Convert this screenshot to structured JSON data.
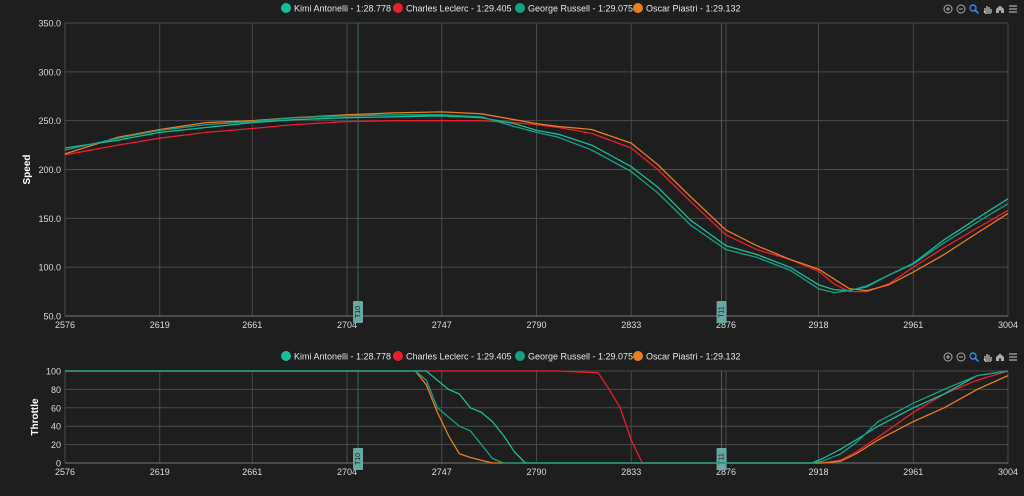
{
  "legend": [
    {
      "label": "Kimi Antonelli - 1:28.778",
      "color": "#1abc9c"
    },
    {
      "label": "Charles Leclerc - 1:29.405",
      "color": "#e8202e"
    },
    {
      "label": "George Russell - 1:29.075",
      "color": "#16a085"
    },
    {
      "label": "Oscar Piastri - 1:29.132",
      "color": "#e67e22"
    }
  ],
  "toolbar_icons": [
    "zoom-in-icon",
    "zoom-out-icon",
    "magnifier-icon",
    "pan-hand-icon",
    "home-icon",
    "menu-icon"
  ],
  "chart_data": [
    {
      "type": "line",
      "title": "",
      "ylabel": "Speed",
      "xlim": [
        2576,
        3004
      ],
      "ylim": [
        50,
        350
      ],
      "yticks": [
        "50.0",
        "100.0",
        "150.0",
        "200.0",
        "250.0",
        "300.0",
        "350.0"
      ],
      "xticks": [
        "2576",
        "2619",
        "2661",
        "2704",
        "2747",
        "2790",
        "2833",
        "2876",
        "2918",
        "2961",
        "3004"
      ],
      "annotations": [
        {
          "x": 2709,
          "label": "T10"
        },
        {
          "x": 2874,
          "label": "T11"
        }
      ],
      "grid": true,
      "legend_position": "top",
      "x": [
        2576,
        2600,
        2619,
        2640,
        2661,
        2680,
        2704,
        2725,
        2747,
        2765,
        2780,
        2790,
        2800,
        2815,
        2833,
        2845,
        2860,
        2876,
        2890,
        2905,
        2918,
        2925,
        2932,
        2940,
        2950,
        2961,
        2975,
        2990,
        3004
      ],
      "series": [
        {
          "name": "Kimi Antonelli - 1:28.778",
          "values": [
            222,
            230,
            238,
            243,
            248,
            251,
            253,
            254,
            255,
            253,
            247,
            240,
            236,
            225,
            203,
            182,
            148,
            122,
            113,
            100,
            82,
            77,
            76,
            80,
            92,
            104,
            128,
            150,
            170
          ]
        },
        {
          "name": "Charles Leclerc - 1:29.405",
          "values": [
            215,
            225,
            232,
            238,
            242,
            246,
            249,
            250,
            250,
            250,
            248,
            246,
            243,
            237,
            222,
            200,
            167,
            133,
            118,
            108,
            96,
            83,
            75,
            75,
            83,
            100,
            120,
            140,
            158
          ]
        },
        {
          "name": "George Russell - 1:29.075",
          "values": [
            220,
            232,
            240,
            246,
            249,
            253,
            255,
            256,
            256,
            254,
            244,
            238,
            233,
            220,
            198,
            176,
            143,
            118,
            110,
            97,
            78,
            74,
            76,
            81,
            92,
            103,
            125,
            146,
            165
          ]
        },
        {
          "name": "Oscar Piastri - 1:29.132",
          "values": [
            216,
            233,
            241,
            248,
            250,
            253,
            256,
            258,
            259,
            257,
            251,
            247,
            244,
            241,
            227,
            205,
            172,
            138,
            122,
            108,
            98,
            88,
            78,
            76,
            82,
            95,
            113,
            135,
            155
          ]
        }
      ]
    },
    {
      "type": "line",
      "title": "",
      "ylabel": "Throttle",
      "xlim": [
        2576,
        3004
      ],
      "ylim": [
        0,
        100
      ],
      "yticks": [
        "0",
        "20",
        "40",
        "60",
        "80",
        "100"
      ],
      "xticks": [
        "2576",
        "2619",
        "2661",
        "2704",
        "2747",
        "2790",
        "2833",
        "2876",
        "2918",
        "2961",
        "3004"
      ],
      "annotations": [
        {
          "x": 2709,
          "label": "T10"
        },
        {
          "x": 2874,
          "label": "T11"
        }
      ],
      "grid": true,
      "legend_position": "top",
      "x": [
        2576,
        2735,
        2740,
        2745,
        2750,
        2755,
        2760,
        2765,
        2770,
        2775,
        2780,
        2785,
        2800,
        2818,
        2823,
        2828,
        2833,
        2838,
        2900,
        2915,
        2920,
        2928,
        2935,
        2945,
        2961,
        2975,
        2990,
        3004
      ],
      "series": [
        {
          "name": "Kimi Antonelli - 1:28.778",
          "values": [
            100,
            100,
            100,
            90,
            80,
            75,
            60,
            55,
            45,
            30,
            12,
            0,
            0,
            0,
            0,
            0,
            0,
            0,
            0,
            0,
            5,
            15,
            25,
            40,
            60,
            75,
            95,
            100
          ]
        },
        {
          "name": "Charles Leclerc - 1:29.405",
          "values": [
            100,
            100,
            100,
            100,
            100,
            100,
            100,
            100,
            100,
            100,
            100,
            100,
            100,
            98,
            80,
            60,
            25,
            0,
            0,
            0,
            0,
            3,
            12,
            28,
            55,
            75,
            90,
            100
          ]
        },
        {
          "name": "George Russell - 1:29.075",
          "values": [
            100,
            100,
            90,
            60,
            50,
            40,
            35,
            20,
            5,
            0,
            0,
            0,
            0,
            0,
            0,
            0,
            0,
            0,
            0,
            0,
            2,
            10,
            22,
            45,
            65,
            80,
            95,
            100
          ]
        },
        {
          "name": "Oscar Piastri - 1:29.132",
          "values": [
            100,
            100,
            85,
            55,
            30,
            10,
            6,
            3,
            0,
            0,
            0,
            0,
            0,
            0,
            0,
            0,
            0,
            0,
            0,
            0,
            0,
            2,
            10,
            25,
            45,
            60,
            80,
            95
          ]
        }
      ]
    }
  ]
}
